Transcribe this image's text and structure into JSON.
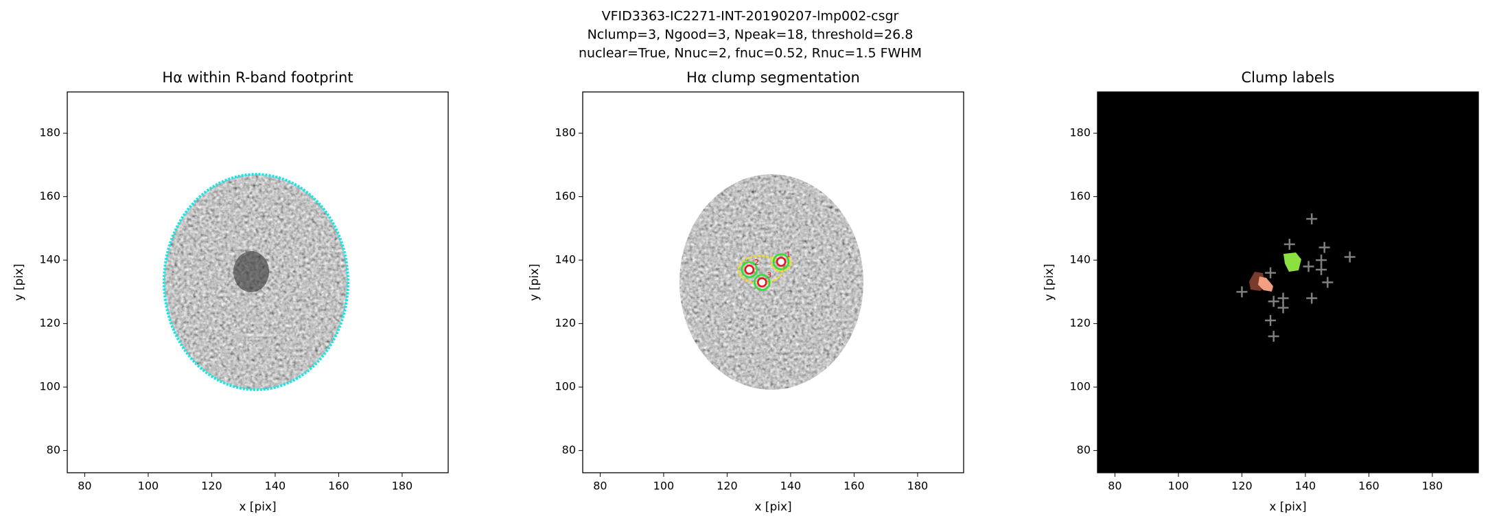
{
  "figure": {
    "title_lines": [
      "VFID3363-IC2271-INT-20190207-lmp002-csgr",
      "Nclump=3, Ngood=3, Npeak=18, threshold=26.8",
      "nuclear=True, Nnuc=2, fnuc=0.52, Rnuc=1.5 FWHM"
    ]
  },
  "chart_data": [
    {
      "type": "image",
      "title": "Hα within R-band footprint",
      "xlabel": "x [pix]",
      "ylabel": "y [pix]",
      "xlim": [
        74.5,
        194.5
      ],
      "ylim": [
        73,
        193
      ],
      "xticks": [
        80,
        100,
        120,
        140,
        160,
        180
      ],
      "yticks": [
        80,
        100,
        120,
        140,
        160,
        180
      ]
    },
    {
      "type": "image",
      "title": "Hα clump segmentation",
      "xlabel": "x [pix]",
      "ylabel": "y [pix]",
      "xlim": [
        74.5,
        194.5
      ],
      "ylim": [
        73,
        193
      ],
      "xticks": [
        80,
        100,
        120,
        140,
        160,
        180
      ],
      "yticks": [
        80,
        100,
        120,
        140,
        160,
        180
      ],
      "series": [
        {
          "x": [
            137,
            127,
            131
          ],
          "values": [
            139.5,
            137,
            133
          ],
          "labels": [
            "1",
            "2",
            "3"
          ],
          "color": "#e8141c"
        }
      ]
    },
    {
      "type": "image",
      "title": "Clump labels",
      "xlabel": "x [pix]",
      "ylabel": "y [pix]",
      "xlim": [
        74.5,
        194.5
      ],
      "ylim": [
        73,
        193
      ],
      "xticks": [
        80,
        100,
        120,
        140,
        160,
        180
      ],
      "yticks": [
        80,
        100,
        120,
        140,
        160,
        180
      ],
      "series": [
        {
          "x": [
            142,
            135,
            146,
            154,
            141,
            145,
            145,
            147,
            129,
            133,
            130,
            133,
            120,
            142,
            129,
            130
          ],
          "values": [
            153,
            145,
            144,
            141,
            138,
            140,
            137,
            133,
            136,
            128,
            127,
            125,
            130,
            128,
            121,
            116
          ],
          "color": "#808080"
        }
      ]
    }
  ]
}
